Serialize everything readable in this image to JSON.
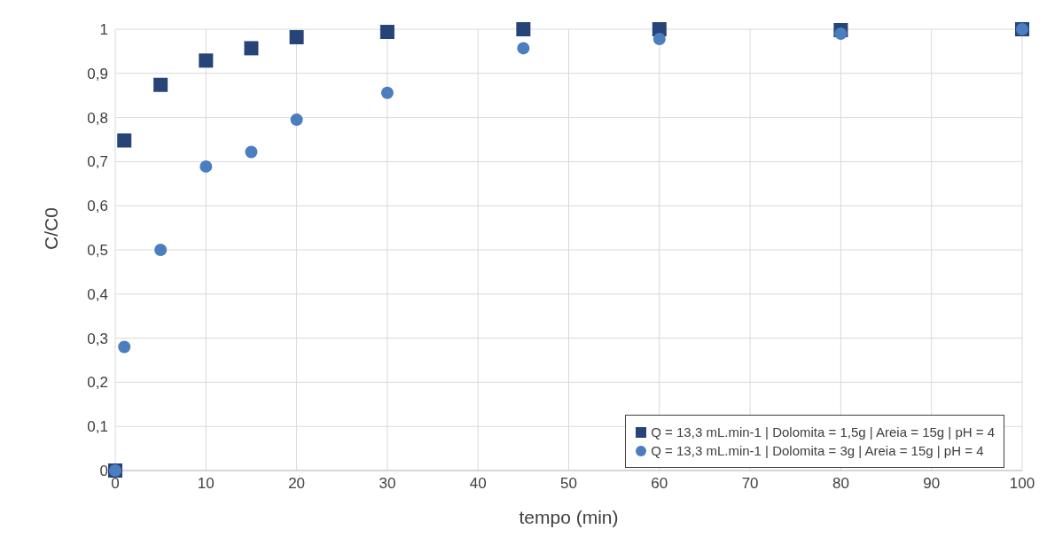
{
  "chart_data": {
    "type": "scatter",
    "xlabel": "tempo (min)",
    "ylabel": "C/C0",
    "xlim": [
      0,
      100
    ],
    "xticks": [
      0,
      10,
      20,
      30,
      40,
      50,
      60,
      70,
      80,
      90,
      100
    ],
    "ylim": [
      0,
      1
    ],
    "yticks": [
      0,
      {
        "value": 0.1,
        "label": "0,1"
      },
      {
        "value": 0.2,
        "label": "0,2"
      },
      {
        "value": 0.3,
        "label": "0,3"
      },
      {
        "value": 0.4,
        "label": "0,4"
      },
      {
        "value": 0.5,
        "label": "0,5"
      },
      {
        "value": 0.6,
        "label": "0,6"
      },
      {
        "value": 0.7,
        "label": "0,7"
      },
      {
        "value": 0.8,
        "label": "0,8"
      },
      {
        "value": 0.9,
        "label": "0,9"
      },
      1
    ],
    "grid": true,
    "legend": "bottom right",
    "x": [
      0,
      1,
      5,
      10,
      15,
      20,
      30,
      45,
      60,
      80,
      100
    ],
    "series": [
      {
        "name": "Q = 13,3 mL.min-1 | Dolomita = 1,5g | Areia = 15g | pH = 4",
        "color": "#264478",
        "marker": "square",
        "values": [
          0,
          0.748,
          0.874,
          0.929,
          0.957,
          0.982,
          0.994,
          1.0,
          1.0,
          0.998,
          1.0
        ]
      },
      {
        "name": "Q = 13,3 mL.min-1 | Dolomita = 3g | Areia = 15g | pH = 4",
        "color": "#4a7ebf",
        "marker": "circle",
        "values": [
          0,
          0.28,
          0.5,
          0.689,
          0.722,
          0.795,
          0.856,
          0.957,
          0.978,
          0.99,
          1.0
        ]
      }
    ]
  }
}
